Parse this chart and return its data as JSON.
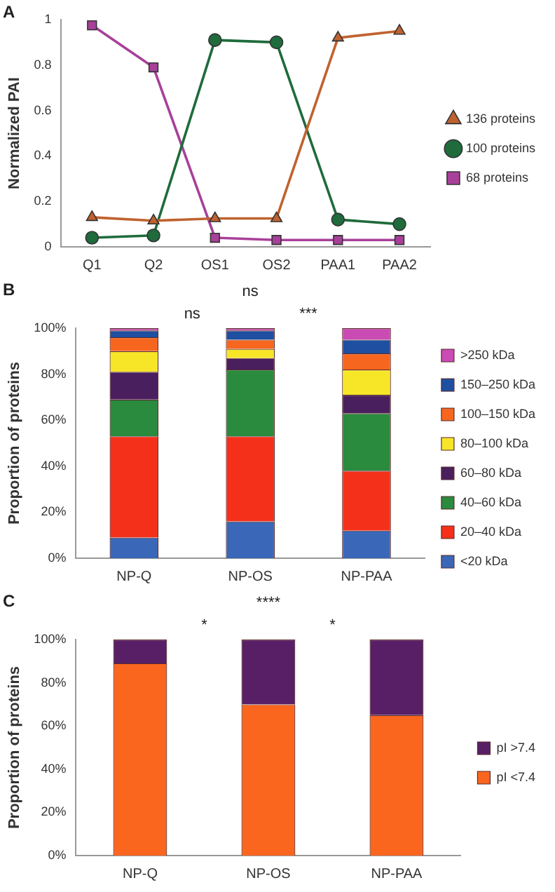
{
  "chart_data": [
    {
      "type": "line",
      "annotations": [
        "A"
      ],
      "ylabel": "Normalized PAI",
      "categories": [
        "Q1",
        "Q2",
        "OS1",
        "OS2",
        "PAA1",
        "PAA2"
      ],
      "ylim": [
        0,
        1
      ],
      "yticks": [
        0,
        0.2,
        0.4,
        0.6,
        0.8,
        1
      ],
      "grid": false,
      "legend": "right",
      "line_style": "solid",
      "series": [
        {
          "name": "136 proteins",
          "color": "#c0622f",
          "marker": "triangle",
          "values": [
            0.13,
            0.115,
            0.125,
            0.125,
            0.92,
            0.95
          ]
        },
        {
          "name": "100 proteins",
          "color": "#1f6b3c",
          "marker": "circle",
          "values": [
            0.04,
            0.05,
            0.91,
            0.9,
            0.12,
            0.1
          ]
        },
        {
          "name": "68 proteins",
          "color": "#a8409a",
          "marker": "square",
          "values": [
            0.975,
            0.79,
            0.04,
            0.03,
            0.03,
            0.03
          ]
        }
      ]
    },
    {
      "type": "bar",
      "stacked": true,
      "annotations": [
        "B",
        "ns",
        "ns",
        "***"
      ],
      "ylabel": "Proportion of proteins",
      "categories": [
        "NP-Q",
        "NP-OS",
        "NP-PAA"
      ],
      "ylim": [
        0,
        100
      ],
      "yticks": [
        {
          "value": 0,
          "label": "0%"
        },
        {
          "value": 20,
          "label": "20%"
        },
        {
          "value": 40,
          "label": "40%"
        },
        {
          "value": 60,
          "label": "60%"
        },
        {
          "value": 80,
          "label": "80%"
        },
        {
          "value": 100,
          "label": "100%"
        }
      ],
      "grid": false,
      "legend": "right",
      "series": [
        {
          "name": "<20 kDa",
          "color": "#3a67b8",
          "values": [
            9,
            16,
            12
          ]
        },
        {
          "name": "20–40 kDa",
          "color": "#f5301a",
          "values": [
            44,
            37,
            26
          ]
        },
        {
          "name": "40–60 kDa",
          "color": "#2a8a3e",
          "values": [
            16,
            29,
            25
          ]
        },
        {
          "name": "60–80 kDa",
          "color": "#4a1f5e",
          "values": [
            12,
            5,
            8
          ]
        },
        {
          "name": "80–100 kDa",
          "color": "#f7e628",
          "values": [
            9,
            4,
            11
          ]
        },
        {
          "name": "100–150 kDa",
          "color": "#f7661f",
          "values": [
            6,
            4,
            7
          ]
        },
        {
          "name": "150–250 kDa",
          "color": "#1f4fa0",
          "values": [
            3,
            4,
            6
          ]
        },
        {
          "name": ">250 kDa",
          "color": "#c94bb3",
          "values": [
            1,
            1,
            5
          ]
        }
      ]
    },
    {
      "type": "bar",
      "stacked": true,
      "annotations": [
        "C",
        "****",
        "*",
        "*"
      ],
      "ylabel": "Proportion of proteins",
      "categories": [
        "NP-Q",
        "NP-OS",
        "NP-PAA"
      ],
      "ylim": [
        0,
        100
      ],
      "yticks": [
        {
          "value": 0,
          "label": "0%"
        },
        {
          "value": 20,
          "label": "20%"
        },
        {
          "value": 40,
          "label": "40%"
        },
        {
          "value": 60,
          "label": "60%"
        },
        {
          "value": 80,
          "label": "80%"
        },
        {
          "value": 100,
          "label": "100%"
        }
      ],
      "grid": false,
      "legend": "right",
      "series": [
        {
          "name": "pI <7.4",
          "color": "#fb661f",
          "values": [
            89,
            70,
            65
          ]
        },
        {
          "name": "pI >7.4",
          "color": "#581f66",
          "values": [
            11,
            30,
            35
          ]
        }
      ]
    }
  ]
}
